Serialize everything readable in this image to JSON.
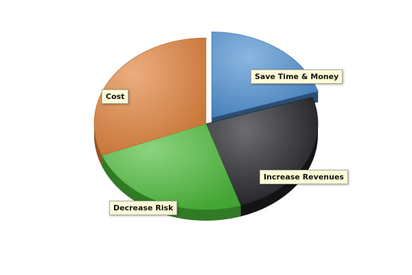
{
  "chart_data": {
    "type": "pie",
    "style": "3d-exploded",
    "title": "",
    "slices": [
      {
        "label": "Save Time & Money",
        "value": 20,
        "color": "#4d8fd1",
        "exploded": true
      },
      {
        "label": "Increase Revenues",
        "value": 25,
        "color": "#1f1f24",
        "exploded": false
      },
      {
        "label": "Decrease Risk",
        "value": 24,
        "color": "#4cbb3a",
        "exploded": false
      },
      {
        "label": "Cost",
        "value": 31,
        "color": "#e0813a",
        "exploded": false
      }
    ]
  }
}
